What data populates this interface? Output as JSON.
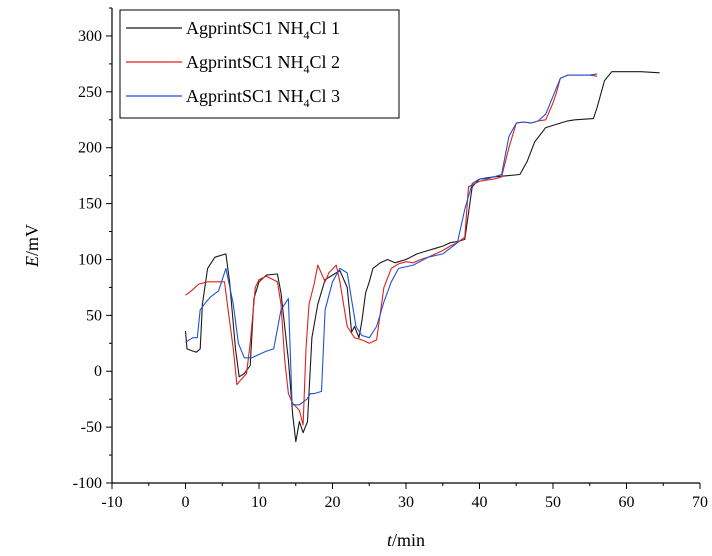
{
  "chart_data": {
    "type": "line",
    "xlabel": {
      "italic": "t",
      "rest": "/min"
    },
    "ylabel": {
      "italic": "E",
      "rest": "/mV"
    },
    "xlim": [
      -10,
      70
    ],
    "ylim": [
      -100,
      325
    ],
    "xticks": [
      -10,
      0,
      10,
      20,
      30,
      40,
      50,
      60,
      70
    ],
    "yticks": [
      -100,
      -50,
      0,
      50,
      100,
      150,
      200,
      250,
      300
    ],
    "grid": false,
    "legend_position": "top-left",
    "series": [
      {
        "name": {
          "prefix": "AgprintSC1 NH",
          "sub": "4",
          "suffix": "Cl 1"
        },
        "color": "#1a1a1a",
        "points": [
          [
            0,
            36
          ],
          [
            0.2,
            20
          ],
          [
            1,
            18
          ],
          [
            1.5,
            17
          ],
          [
            2,
            20
          ],
          [
            2.3,
            60
          ],
          [
            3,
            92
          ],
          [
            4,
            102
          ],
          [
            5.5,
            105
          ],
          [
            6,
            80
          ],
          [
            6.8,
            20
          ],
          [
            7.3,
            -5
          ],
          [
            8,
            -2
          ],
          [
            8.8,
            5
          ],
          [
            9.3,
            65
          ],
          [
            10,
            80
          ],
          [
            11,
            86
          ],
          [
            12.5,
            87
          ],
          [
            13,
            70
          ],
          [
            14,
            10
          ],
          [
            14.6,
            -40
          ],
          [
            15,
            -63
          ],
          [
            15.5,
            -45
          ],
          [
            16,
            -55
          ],
          [
            16.6,
            -45
          ],
          [
            17.2,
            30
          ],
          [
            18,
            60
          ],
          [
            19,
            82
          ],
          [
            20,
            86
          ],
          [
            21,
            90
          ],
          [
            22,
            75
          ],
          [
            22.6,
            35
          ],
          [
            23,
            40
          ],
          [
            23.6,
            30
          ],
          [
            24,
            45
          ],
          [
            24.5,
            70
          ],
          [
            25,
            80
          ],
          [
            25.5,
            92
          ],
          [
            26.5,
            97
          ],
          [
            27.5,
            100
          ],
          [
            28.5,
            97
          ],
          [
            30,
            100
          ],
          [
            31.5,
            105
          ],
          [
            33,
            108
          ],
          [
            34,
            110
          ],
          [
            35,
            112
          ],
          [
            36,
            115
          ],
          [
            37,
            116
          ],
          [
            38,
            118
          ],
          [
            39,
            165
          ],
          [
            40,
            172
          ],
          [
            42,
            174
          ],
          [
            44,
            175
          ],
          [
            45.5,
            176
          ],
          [
            46.5,
            188
          ],
          [
            47.5,
            205
          ],
          [
            49,
            218
          ],
          [
            50,
            220
          ],
          [
            51,
            222
          ],
          [
            52,
            224
          ],
          [
            53,
            225
          ],
          [
            55.5,
            226
          ],
          [
            56,
            236
          ],
          [
            57,
            260
          ],
          [
            58,
            268
          ],
          [
            60,
            268
          ],
          [
            62,
            268
          ],
          [
            64.5,
            267
          ]
        ]
      },
      {
        "name": {
          "prefix": "AgprintSC1 NH",
          "sub": "4",
          "suffix": "Cl 2"
        },
        "color": "#e0201e",
        "points": [
          [
            0,
            68
          ],
          [
            0.8,
            72
          ],
          [
            1.8,
            78
          ],
          [
            3,
            80
          ],
          [
            4,
            80
          ],
          [
            5.3,
            80
          ],
          [
            5.8,
            55
          ],
          [
            6.5,
            20
          ],
          [
            7,
            -12
          ],
          [
            7.5,
            -8
          ],
          [
            8.3,
            -2
          ],
          [
            8.8,
            25
          ],
          [
            9.5,
            75
          ],
          [
            10,
            82
          ],
          [
            11,
            85
          ],
          [
            12.5,
            80
          ],
          [
            13,
            60
          ],
          [
            13.5,
            10
          ],
          [
            14,
            -20
          ],
          [
            14.5,
            -28
          ],
          [
            15.5,
            -35
          ],
          [
            16,
            -48
          ],
          [
            16.4,
            20
          ],
          [
            16.8,
            60
          ],
          [
            17.5,
            78
          ],
          [
            18,
            95
          ],
          [
            19,
            80
          ],
          [
            19.5,
            88
          ],
          [
            20.5,
            95
          ],
          [
            21,
            80
          ],
          [
            22,
            40
          ],
          [
            23,
            30
          ],
          [
            24,
            28
          ],
          [
            25,
            25
          ],
          [
            26,
            28
          ],
          [
            27,
            75
          ],
          [
            28,
            92
          ],
          [
            29,
            96
          ],
          [
            30,
            98
          ],
          [
            31,
            97
          ],
          [
            32,
            100
          ],
          [
            33,
            102
          ],
          [
            34,
            105
          ],
          [
            35,
            108
          ],
          [
            36,
            112
          ],
          [
            37,
            115
          ],
          [
            38,
            120
          ],
          [
            38.5,
            165
          ],
          [
            40,
            170
          ],
          [
            42,
            172
          ],
          [
            43,
            174
          ],
          [
            44,
            200
          ],
          [
            45,
            222
          ],
          [
            46,
            223
          ],
          [
            47,
            222
          ],
          [
            48,
            224
          ],
          [
            49,
            225
          ],
          [
            50,
            240
          ],
          [
            50.5,
            250
          ],
          [
            51,
            262
          ],
          [
            52,
            265
          ],
          [
            55,
            265
          ],
          [
            56,
            264
          ]
        ]
      },
      {
        "name": {
          "prefix": "AgprintSC1 NH",
          "sub": "4",
          "suffix": "Cl 3"
        },
        "color": "#1f52d8",
        "points": [
          [
            0,
            26
          ],
          [
            1,
            30
          ],
          [
            1.6,
            30
          ],
          [
            2,
            55
          ],
          [
            2.8,
            62
          ],
          [
            3.5,
            67
          ],
          [
            4.5,
            72
          ],
          [
            5.5,
            92
          ],
          [
            6.5,
            60
          ],
          [
            7.2,
            25
          ],
          [
            8,
            12
          ],
          [
            9,
            12
          ],
          [
            10,
            15
          ],
          [
            11,
            18
          ],
          [
            12,
            20
          ],
          [
            13,
            55
          ],
          [
            14,
            65
          ],
          [
            14.5,
            -30
          ],
          [
            15.5,
            -30
          ],
          [
            16.5,
            -25
          ],
          [
            17,
            -20
          ],
          [
            17.5,
            -20
          ],
          [
            18.5,
            -18
          ],
          [
            19,
            55
          ],
          [
            20,
            80
          ],
          [
            21,
            92
          ],
          [
            22,
            88
          ],
          [
            23.2,
            40
          ],
          [
            24,
            32
          ],
          [
            25,
            30
          ],
          [
            26,
            40
          ],
          [
            27,
            62
          ],
          [
            28,
            80
          ],
          [
            29,
            92
          ],
          [
            31,
            95
          ],
          [
            33,
            102
          ],
          [
            35,
            105
          ],
          [
            36,
            110
          ],
          [
            37,
            115
          ],
          [
            38,
            145
          ],
          [
            39,
            168
          ],
          [
            40,
            172
          ],
          [
            41,
            172
          ],
          [
            42,
            174
          ],
          [
            43,
            176
          ],
          [
            44,
            210
          ],
          [
            45,
            222
          ],
          [
            46,
            223
          ],
          [
            47,
            222
          ],
          [
            48,
            224
          ],
          [
            49,
            230
          ],
          [
            51,
            262
          ],
          [
            52,
            265
          ],
          [
            55,
            265
          ],
          [
            56,
            266
          ]
        ]
      }
    ]
  }
}
